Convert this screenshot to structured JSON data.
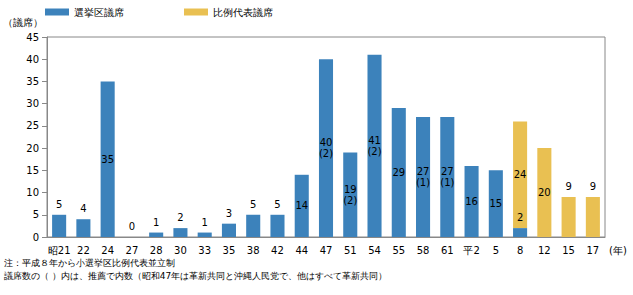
{
  "chart_data": {
    "type": "bar",
    "y_label": "（議席）",
    "x_label": "(年)",
    "categories": [
      "昭21",
      "22",
      "24",
      "27",
      "28",
      "30",
      "33",
      "35",
      "38",
      "42",
      "44",
      "47",
      "51",
      "54",
      "55",
      "58",
      "61",
      "平2",
      "5",
      "8",
      "12",
      "15",
      "17"
    ],
    "series": [
      {
        "name": "選挙区議席",
        "color": "#3c82bb",
        "values": [
          5,
          4,
          35,
          0,
          1,
          2,
          1,
          3,
          5,
          5,
          14,
          40,
          19,
          41,
          29,
          27,
          27,
          16,
          15,
          2,
          null,
          null,
          null
        ],
        "value_labels": [
          "5",
          "4",
          "35",
          "0",
          "1",
          "2",
          "1",
          "3",
          "5",
          "5",
          "14",
          "40\n(2)",
          "19\n(2)",
          "41\n(2)",
          "29",
          "27\n(1)",
          "27\n(1)",
          "16",
          "15",
          "2",
          null,
          null,
          null
        ]
      },
      {
        "name": "比例代表議席",
        "color": "#e9c052",
        "values": [
          null,
          null,
          null,
          null,
          null,
          null,
          null,
          null,
          null,
          null,
          null,
          null,
          null,
          null,
          null,
          null,
          null,
          null,
          null,
          24,
          20,
          9,
          9
        ]
      }
    ],
    "stacked": true,
    "data_labels": true,
    "legend": "top-left",
    "grid": false,
    "ylim": [
      0,
      45
    ],
    "yticks": [
      0,
      5,
      10,
      15,
      20,
      25,
      30,
      35,
      40,
      45
    ],
    "annotations": [
      "注：平成８年から小選挙区比例代表並立制",
      "議席数の（ ）内は、推薦で内数（昭和47年は革新共同と沖縄人民党で、他はすべて革新共同）"
    ]
  }
}
